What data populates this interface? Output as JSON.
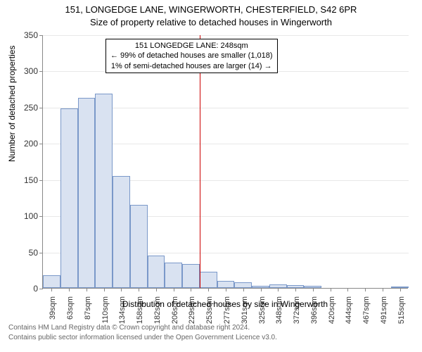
{
  "title_line1": "151, LONGEDGE LANE, WINGERWORTH, CHESTERFIELD, S42 6PR",
  "title_line2": "Size of property relative to detached houses in Wingerworth",
  "ylabel": "Number of detached properties",
  "xlabel": "Distribution of detached houses by size in Wingerworth",
  "footer1": "Contains HM Land Registry data © Crown copyright and database right 2024.",
  "footer2": "Contains public sector information licensed under the Open Government Licence v3.0.",
  "annotation": {
    "line1": "151 LONGEDGE LANE: 248sqm",
    "line2": "← 99% of detached houses are smaller (1,018)",
    "line3": "1% of semi-detached houses are larger (14) →"
  },
  "chart": {
    "type": "histogram",
    "ylim": [
      0,
      350
    ],
    "ytick_step": 50,
    "bar_fill": "#d9e2f1",
    "bar_stroke": "#7a98c9",
    "grid_color": "#e8e8e8",
    "background_color": "#ffffff",
    "marker_color": "#cc0000",
    "marker_x_index": 9,
    "x_labels": [
      "39sqm",
      "63sqm",
      "87sqm",
      "110sqm",
      "134sqm",
      "158sqm",
      "182sqm",
      "206sqm",
      "229sqm",
      "253sqm",
      "277sqm",
      "301sqm",
      "325sqm",
      "348sqm",
      "372sqm",
      "396sqm",
      "420sqm",
      "444sqm",
      "467sqm",
      "491sqm",
      "515sqm"
    ],
    "values": [
      18,
      248,
      263,
      268,
      155,
      115,
      45,
      35,
      33,
      22,
      10,
      8,
      3,
      5,
      4,
      3,
      0,
      0,
      0,
      0,
      2
    ]
  }
}
